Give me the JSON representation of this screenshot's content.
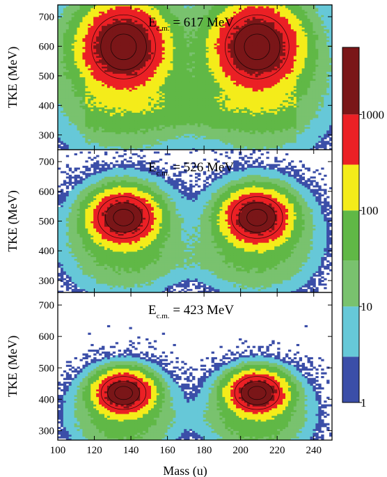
{
  "chart_data": {
    "type": "heatmap",
    "shared_x": {
      "label": "Mass (u)",
      "range": [
        100,
        250
      ],
      "ticks": [
        100,
        120,
        140,
        160,
        180,
        200,
        220,
        240
      ]
    },
    "colorbar": {
      "scale": "log",
      "range": [
        1,
        5000
      ],
      "ticks": [
        {
          "value": 1,
          "label": "1"
        },
        {
          "value": 10,
          "label": "10"
        },
        {
          "value": 100,
          "label": "100"
        },
        {
          "value": 1000,
          "label": "1000"
        }
      ],
      "levels": [
        {
          "from": 1,
          "to": 3,
          "color": "#3b4ea8"
        },
        {
          "from": 3,
          "to": 10,
          "color": "#66c8d8"
        },
        {
          "from": 10,
          "to": 30,
          "color": "#79c26e"
        },
        {
          "from": 30,
          "to": 100,
          "color": "#60b846"
        },
        {
          "from": 100,
          "to": 300,
          "color": "#f4ec1a"
        },
        {
          "from": 300,
          "to": 1000,
          "color": "#eb2025"
        },
        {
          "from": 1000,
          "to": 5000,
          "color": "#7a1618"
        }
      ]
    },
    "panels": [
      {
        "annotation": "E",
        "annotation_sub": "c.m.",
        "annotation_value": " = 617 MeV",
        "ylabel": "TKE (MeV)",
        "ylim": [
          250,
          740
        ],
        "yticks": [
          300,
          400,
          500,
          600,
          700
        ],
        "peaks": [
          {
            "mass": 136,
            "tke": 598,
            "max_count": 3000,
            "sigma_mass": 10,
            "sigma_tke": 62
          },
          {
            "mass": 209,
            "tke": 598,
            "max_count": 3000,
            "sigma_mass": 10,
            "sigma_tke": 62
          }
        ],
        "fission_band": {
          "mass_range": [
            115,
            230
          ],
          "tke_center": 400,
          "tke_spread": 45,
          "count": 60
        }
      },
      {
        "annotation": "E",
        "annotation_sub": "c.m.",
        "annotation_value": " = 526 MeV",
        "ylabel": "TKE (MeV)",
        "ylim": [
          260,
          740
        ],
        "yticks": [
          300,
          400,
          500,
          600,
          700
        ],
        "peaks": [
          {
            "mass": 136,
            "tke": 512,
            "max_count": 2500,
            "sigma_mass": 8,
            "sigma_tke": 40
          },
          {
            "mass": 209,
            "tke": 512,
            "max_count": 2500,
            "sigma_mass": 8,
            "sigma_tke": 40
          }
        ],
        "fission_band": {
          "mass_range": [
            140,
            205
          ],
          "tke_center": 370,
          "tke_spread": 35,
          "count": 6
        }
      },
      {
        "annotation": "E",
        "annotation_sub": "c.m.",
        "annotation_value": " = 423 MeV",
        "ylabel": "TKE (MeV)",
        "ylim": [
          270,
          740
        ],
        "yticks": [
          300,
          400,
          500,
          600,
          700
        ],
        "peaks": [
          {
            "mass": 136,
            "tke": 420,
            "max_count": 2500,
            "sigma_mass": 7,
            "sigma_tke": 30
          },
          {
            "mass": 209,
            "tke": 420,
            "max_count": 2500,
            "sigma_mass": 7,
            "sigma_tke": 30
          }
        ],
        "fission_band": {
          "mass_range": [
            150,
            195
          ],
          "tke_center": 340,
          "tke_spread": 25,
          "count": 2
        }
      }
    ]
  }
}
